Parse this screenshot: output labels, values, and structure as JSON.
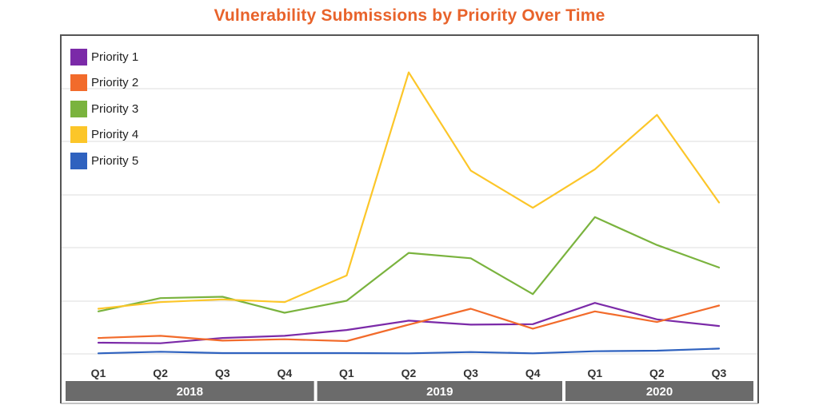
{
  "chart_data": {
    "type": "line",
    "title": "Vulnerability Submissions by Priority Over Time",
    "categories": [
      "Q1",
      "Q2",
      "Q3",
      "Q4",
      "Q1",
      "Q2",
      "Q3",
      "Q4",
      "Q1",
      "Q2",
      "Q3"
    ],
    "year_groups": [
      {
        "label": "2018",
        "start": 0,
        "end": 3
      },
      {
        "label": "2019",
        "start": 4,
        "end": 7
      },
      {
        "label": "2020",
        "start": 8,
        "end": 10
      }
    ],
    "ylim": [
      0,
      100
    ],
    "grid": true,
    "legend_position": "top-left",
    "series": [
      {
        "name": "Priority 1",
        "color": "#7b2aa8",
        "values": [
          4.2,
          4.0,
          6.0,
          6.8,
          9.0,
          12.5,
          11.0,
          11.2,
          19.2,
          13.0,
          10.5
        ]
      },
      {
        "name": "Priority 2",
        "color": "#f26b2b",
        "values": [
          6.0,
          6.8,
          5.0,
          5.5,
          4.8,
          11.0,
          17.0,
          9.5,
          16.0,
          12.0,
          18.2
        ]
      },
      {
        "name": "Priority 3",
        "color": "#7ab33e",
        "values": [
          16.0,
          21.0,
          21.5,
          15.5,
          20.0,
          38.0,
          36.0,
          22.5,
          51.5,
          41.0,
          32.5
        ]
      },
      {
        "name": "Priority 4",
        "color": "#fcc629",
        "values": [
          17.0,
          19.5,
          20.5,
          19.5,
          29.5,
          106.0,
          69.0,
          55.0,
          69.5,
          90.0,
          57.0
        ]
      },
      {
        "name": "Priority 5",
        "color": "#2f62bf",
        "values": [
          0.2,
          0.8,
          0.3,
          0.3,
          0.3,
          0.2,
          0.7,
          0.2,
          1.0,
          1.2,
          2.0
        ]
      }
    ]
  }
}
